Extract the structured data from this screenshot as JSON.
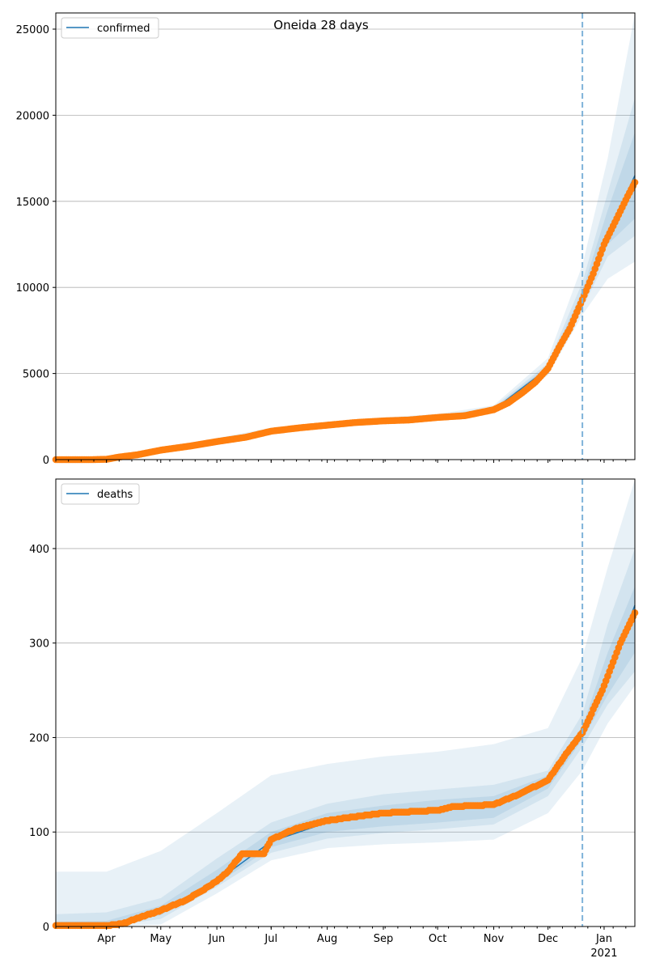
{
  "title": "Oneida 28 days",
  "x_axis": {
    "day0": "Mar 4, 2020",
    "xlim_days": [
      0,
      320
    ],
    "ticks": [
      {
        "day": 28,
        "label": "Apr"
      },
      {
        "day": 58,
        "label": "May"
      },
      {
        "day": 89,
        "label": "Jun"
      },
      {
        "day": 119,
        "label": "Jul"
      },
      {
        "day": 150,
        "label": "Aug"
      },
      {
        "day": 181,
        "label": "Sep"
      },
      {
        "day": 211,
        "label": "Oct"
      },
      {
        "day": 242,
        "label": "Nov"
      },
      {
        "day": 272,
        "label": "Dec"
      },
      {
        "day": 303,
        "label": "Jan"
      }
    ],
    "year_label": "2021",
    "forecast_start_day": 291
  },
  "colors": {
    "line": "#1f77b4",
    "obs": "#ff7f0e",
    "band": "#1f77b4",
    "vline": "#7fb3d9",
    "grid": "#b0b0b0"
  },
  "chart_data": [
    {
      "type": "line",
      "legend": "confirmed",
      "legend_position": "top-left",
      "ylim": [
        0,
        25940
      ],
      "yticks": [
        0,
        5000,
        10000,
        15000,
        20000,
        25000
      ],
      "grid": true,
      "x": [
        0,
        28,
        58,
        89,
        119,
        150,
        181,
        211,
        242,
        272,
        291,
        305,
        320
      ],
      "median": [
        0,
        20,
        550,
        1050,
        1650,
        2000,
        2250,
        2450,
        2900,
        5300,
        9300,
        13000,
        16500
      ],
      "bands": [
        {
          "lo": [
            0,
            0,
            450,
            900,
            1500,
            1850,
            2100,
            2300,
            2700,
            4900,
            8400,
            10500,
            11500
          ],
          "hi": [
            0,
            60,
            700,
            1250,
            1850,
            2200,
            2450,
            2650,
            3150,
            5900,
            11300,
            17500,
            25900
          ]
        },
        {
          "lo": [
            0,
            10,
            500,
            980,
            1580,
            1930,
            2170,
            2380,
            2800,
            5100,
            8800,
            11800,
            13000
          ],
          "hi": [
            0,
            40,
            620,
            1150,
            1750,
            2100,
            2350,
            2550,
            3050,
            5600,
            10300,
            15500,
            21000
          ]
        },
        {
          "lo": [
            0,
            15,
            520,
            1010,
            1610,
            1960,
            2200,
            2410,
            2840,
            5200,
            9000,
            12500,
            14000
          ],
          "hi": [
            0,
            30,
            590,
            1100,
            1700,
            2060,
            2300,
            2500,
            2980,
            5450,
            9800,
            14500,
            19000
          ]
        }
      ],
      "observed": {
        "x": [
          0,
          20,
          28,
          35,
          45,
          58,
          75,
          89,
          105,
          119,
          135,
          150,
          165,
          181,
          195,
          211,
          226,
          242,
          250,
          258,
          265,
          272,
          278,
          284,
          291,
          297,
          303,
          310,
          316,
          320
        ],
        "y": [
          0,
          0,
          20,
          150,
          280,
          550,
          800,
          1050,
          1300,
          1650,
          1850,
          2000,
          2150,
          2250,
          2300,
          2450,
          2550,
          2900,
          3300,
          3900,
          4500,
          5300,
          6500,
          7600,
          9300,
          10800,
          12500,
          14000,
          15300,
          16100
        ]
      }
    },
    {
      "type": "line",
      "legend": "deaths",
      "legend_position": "top-left",
      "ylim": [
        0,
        473.6
      ],
      "yticks": [
        0,
        100,
        200,
        300,
        400
      ],
      "grid": true,
      "x": [
        0,
        28,
        58,
        89,
        119,
        150,
        181,
        211,
        242,
        272,
        291,
        305,
        320
      ],
      "median": [
        0,
        1,
        17,
        48,
        90,
        110,
        118,
        123,
        128,
        155,
        205,
        262,
        340
      ],
      "bands": [
        {
          "lo": [
            0,
            0,
            2,
            35,
            70,
            83,
            87,
            89,
            92,
            120,
            165,
            215,
            255
          ],
          "hi": [
            58,
            58,
            80,
            120,
            160,
            172,
            180,
            185,
            193,
            210,
            285,
            380,
            473
          ]
        },
        {
          "lo": [
            0,
            0,
            8,
            42,
            78,
            93,
            99,
            103,
            108,
            138,
            190,
            235,
            270
          ],
          "hi": [
            13,
            15,
            30,
            72,
            110,
            130,
            140,
            145,
            150,
            165,
            225,
            320,
            400
          ]
        },
        {
          "lo": [
            0,
            0,
            12,
            45,
            84,
            100,
            106,
            110,
            115,
            146,
            198,
            245,
            290
          ],
          "hi": [
            5,
            6,
            22,
            60,
            100,
            120,
            128,
            134,
            138,
            160,
            212,
            290,
            360
          ]
        }
      ],
      "observed": {
        "x": [
          0,
          28,
          37,
          47,
          58,
          72,
          80,
          89,
          95,
          103,
          115,
          119,
          125,
          133,
          150,
          164,
          181,
          211,
          220,
          242,
          256,
          272,
          281,
          291,
          302,
          312,
          320
        ],
        "y": [
          1,
          1,
          3,
          10,
          17,
          28,
          37,
          48,
          58,
          77,
          77,
          92,
          97,
          104,
          112,
          116,
          120,
          123,
          127,
          129,
          140,
          155,
          180,
          205,
          250,
          300,
          332
        ]
      }
    }
  ]
}
